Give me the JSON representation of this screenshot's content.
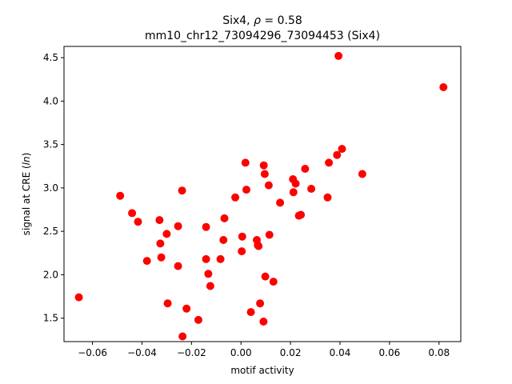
{
  "chart_data": {
    "type": "scatter",
    "title_line1_prefix": "Six4, ",
    "title_line1_rho": "ρ",
    "title_line1_suffix": " = 0.58",
    "title_line2": "mm10_chr12_73094296_73094453 (Six4)",
    "xlabel": "motif activity",
    "ylabel_main": "signal at CRE (",
    "ylabel_italic": "ln",
    "ylabel_close": ")",
    "xlim": [
      -0.0715,
      0.0888
    ],
    "ylim": [
      1.23,
      4.63
    ],
    "xticks": [
      -0.06,
      -0.04,
      -0.02,
      0.0,
      0.02,
      0.04,
      0.06,
      0.08
    ],
    "xtick_labels": [
      "−0.06",
      "−0.04",
      "−0.02",
      "0.00",
      "0.02",
      "0.04",
      "0.06",
      "0.08"
    ],
    "yticks": [
      1.5,
      2.0,
      2.5,
      3.0,
      3.5,
      4.0,
      4.5
    ],
    "ytick_labels": [
      "1.5",
      "2.0",
      "2.5",
      "3.0",
      "3.5",
      "4.0",
      "4.5"
    ],
    "marker_color": "#ff0000",
    "grid": false,
    "points": [
      {
        "x": -0.0655,
        "y": 1.74
      },
      {
        "x": -0.0488,
        "y": 2.91
      },
      {
        "x": -0.044,
        "y": 2.71
      },
      {
        "x": -0.0416,
        "y": 2.61
      },
      {
        "x": -0.038,
        "y": 2.16
      },
      {
        "x": -0.0329,
        "y": 2.63
      },
      {
        "x": -0.0326,
        "y": 2.36
      },
      {
        "x": -0.0322,
        "y": 2.2
      },
      {
        "x": -0.03,
        "y": 2.47
      },
      {
        "x": -0.0296,
        "y": 1.67
      },
      {
        "x": -0.0254,
        "y": 2.56
      },
      {
        "x": -0.0254,
        "y": 2.1
      },
      {
        "x": -0.0238,
        "y": 2.97
      },
      {
        "x": -0.0236,
        "y": 1.29
      },
      {
        "x": -0.022,
        "y": 1.61
      },
      {
        "x": -0.0172,
        "y": 1.48
      },
      {
        "x": -0.0141,
        "y": 2.55
      },
      {
        "x": -0.0141,
        "y": 2.18
      },
      {
        "x": -0.0132,
        "y": 2.01
      },
      {
        "x": -0.0124,
        "y": 1.87
      },
      {
        "x": -0.0083,
        "y": 2.18
      },
      {
        "x": -0.0071,
        "y": 2.4
      },
      {
        "x": -0.0067,
        "y": 2.65
      },
      {
        "x": -0.0023,
        "y": 2.89
      },
      {
        "x": 0.0003,
        "y": 2.27
      },
      {
        "x": 0.0005,
        "y": 2.44
      },
      {
        "x": 0.0018,
        "y": 3.29
      },
      {
        "x": 0.0022,
        "y": 2.98
      },
      {
        "x": 0.004,
        "y": 1.57
      },
      {
        "x": 0.0064,
        "y": 2.4
      },
      {
        "x": 0.0068,
        "y": 2.34
      },
      {
        "x": 0.0071,
        "y": 2.33
      },
      {
        "x": 0.0077,
        "y": 1.67
      },
      {
        "x": 0.0091,
        "y": 1.46
      },
      {
        "x": 0.0092,
        "y": 3.26
      },
      {
        "x": 0.0096,
        "y": 3.16
      },
      {
        "x": 0.0098,
        "y": 1.98
      },
      {
        "x": 0.0112,
        "y": 3.03
      },
      {
        "x": 0.0115,
        "y": 2.46
      },
      {
        "x": 0.0131,
        "y": 1.92
      },
      {
        "x": 0.0158,
        "y": 2.83
      },
      {
        "x": 0.021,
        "y": 3.1
      },
      {
        "x": 0.0212,
        "y": 2.95
      },
      {
        "x": 0.0221,
        "y": 3.05
      },
      {
        "x": 0.0234,
        "y": 2.68
      },
      {
        "x": 0.0242,
        "y": 2.69
      },
      {
        "x": 0.0259,
        "y": 3.22
      },
      {
        "x": 0.0284,
        "y": 2.99
      },
      {
        "x": 0.035,
        "y": 2.89
      },
      {
        "x": 0.0355,
        "y": 3.29
      },
      {
        "x": 0.0388,
        "y": 3.38
      },
      {
        "x": 0.0394,
        "y": 4.52
      },
      {
        "x": 0.0408,
        "y": 3.45
      },
      {
        "x": 0.049,
        "y": 3.16
      },
      {
        "x": 0.0818,
        "y": 4.16
      }
    ]
  }
}
